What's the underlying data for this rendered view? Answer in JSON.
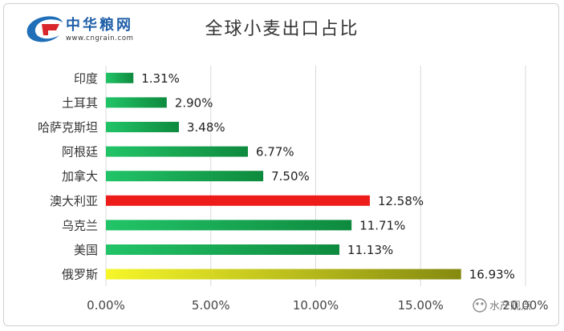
{
  "logo": {
    "brand_name": "中华粮网",
    "url": "www.cngrain.com"
  },
  "watermark": "水产观点",
  "colors": {
    "green_start": "#22c468",
    "green_end": "#0e8a3e",
    "red": "#ee1b1b",
    "yellow_start": "#f6f629",
    "yellow_end": "#858a10",
    "grid": "#d9d9d9"
  },
  "chart_data": {
    "type": "bar",
    "orientation": "horizontal",
    "title": "全球小麦出口占比",
    "categories": [
      "印度",
      "土耳其",
      "哈萨克斯坦",
      "阿根廷",
      "加拿大",
      "澳大利亚",
      "乌克兰",
      "美国",
      "俄罗斯"
    ],
    "values": [
      1.31,
      2.9,
      3.48,
      6.77,
      7.5,
      12.58,
      11.71,
      11.13,
      16.93
    ],
    "value_labels": [
      "1.31%",
      "2.90%",
      "3.48%",
      "6.77%",
      "7.50%",
      "12.58%",
      "11.71%",
      "11.13%",
      "16.93%"
    ],
    "bar_colors": [
      "green",
      "green",
      "green",
      "green",
      "green",
      "red",
      "green",
      "green",
      "yellow"
    ],
    "xlim": [
      0,
      20
    ],
    "x_ticks": [
      0,
      5,
      10,
      15,
      20
    ],
    "x_tick_labels": [
      "0.00%",
      "5.00%",
      "10.00%",
      "15.00%",
      "20.00%"
    ],
    "grid": true,
    "legend": "none"
  }
}
